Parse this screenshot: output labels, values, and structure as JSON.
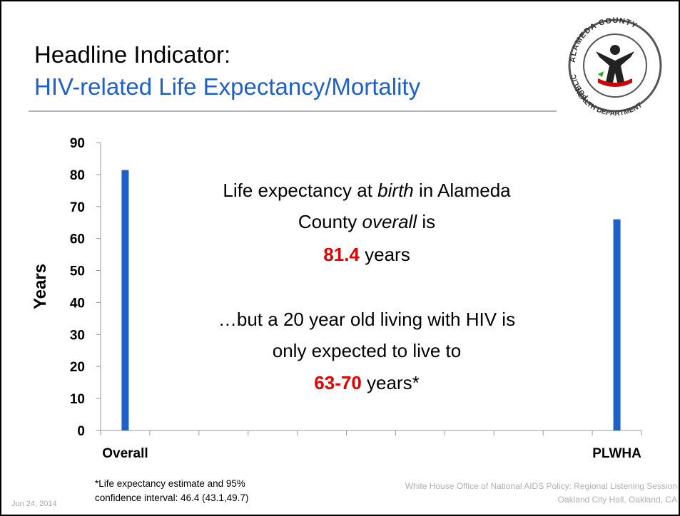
{
  "chart_data": {
    "type": "bar",
    "title": "Headline Indicator:",
    "subtitle": "HIV-related Life Expectancy/Mortality",
    "ylabel": "Years",
    "categories": [
      "Overall",
      null,
      null,
      null,
      null,
      null,
      null,
      null,
      null,
      null,
      "PLWHA"
    ],
    "values": [
      81.4,
      null,
      null,
      null,
      null,
      null,
      null,
      null,
      null,
      null,
      66
    ],
    "color": "#1f5fc8",
    "ylim": [
      0,
      90
    ],
    "yticks": [
      0,
      10,
      20,
      30,
      40,
      50,
      60,
      70,
      80,
      90
    ],
    "grid": false,
    "annotation_lines": [
      [
        "Life expectancy at ",
        "birth",
        " in Alameda"
      ],
      [
        "County ",
        "overall",
        " is"
      ],
      [
        "81.4",
        " years"
      ],
      [
        "…but a 20 year old living with HIV is"
      ],
      [
        "only expected to live to"
      ],
      [
        "63-70",
        " years*"
      ]
    ],
    "footnote": [
      "*Life expectancy estimate and 95%",
      "confidence interval: 46.4 (43.1,49.7)"
    ]
  },
  "footer": {
    "date": "Jun 24, 2014",
    "source": [
      "White House Office of National AIDS Policy:  Regional Listening Session",
      "Oakland City Hall, Oakland, CA"
    ]
  },
  "logo": {
    "top": "ALAMEDA COUNTY",
    "left": "PUBLIC",
    "bottom": "HEALTH DEPARTMENT"
  }
}
